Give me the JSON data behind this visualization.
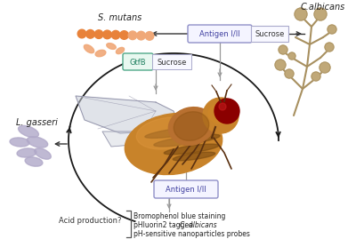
{
  "bg_color": "#ffffff",
  "fig_width": 4.0,
  "fig_height": 2.78,
  "dpi": 100,
  "s_mutans_label": "S. mutans",
  "c_albicans_label": "C.albicans",
  "l_gasseri_label": "L. gasseri",
  "antigen_top_label": "Antigen I/II",
  "sucrose_top_label": "Sucrose",
  "gtfb_label": "GtfB",
  "sucrose_left_label": "Sucrose",
  "antigen_bottom_label": "Antigen I/II",
  "acid_label": "Acid production?",
  "methods_line1": "Bromophenol blue staining",
  "methods_line2_pre": "pHluorin2 tagged ",
  "methods_line2_italic": "C. albicans",
  "methods_line3": "pH-sensitive nanoparticles probes",
  "fly_body_color": "#C8832A",
  "fly_abdomen_color": "#A06020",
  "fly_thorax_color": "#B87030",
  "fly_stripe_color": "#7A4A10",
  "fly_eye_color": "#8B0000",
  "fly_wing_color": "#C8CDD8",
  "fly_wing_edge": "#9090A8",
  "s_mutans_color": "#E8823A",
  "s_mutans_light_color": "#F0A878",
  "l_gasseri_color": "#B0A8C8",
  "c_albicans_color": "#C0A878",
  "c_albicans_stem": "#A89060",
  "arrow_color": "#333333",
  "arc_arrow_color": "#1a1a1a",
  "box_border_color": "#9090C8",
  "box_bg_color": "#F4F4FF",
  "gtfb_border_color": "#50A888",
  "gtfb_bg_color": "#E8F8F0",
  "sucrose_box_border": "#aaaacc",
  "sucrose_box_bg": "#F8F8FF",
  "label_fontsize": 7,
  "small_fontsize": 6,
  "methods_fontsize": 5.5,
  "gray_line_color": "#999999"
}
